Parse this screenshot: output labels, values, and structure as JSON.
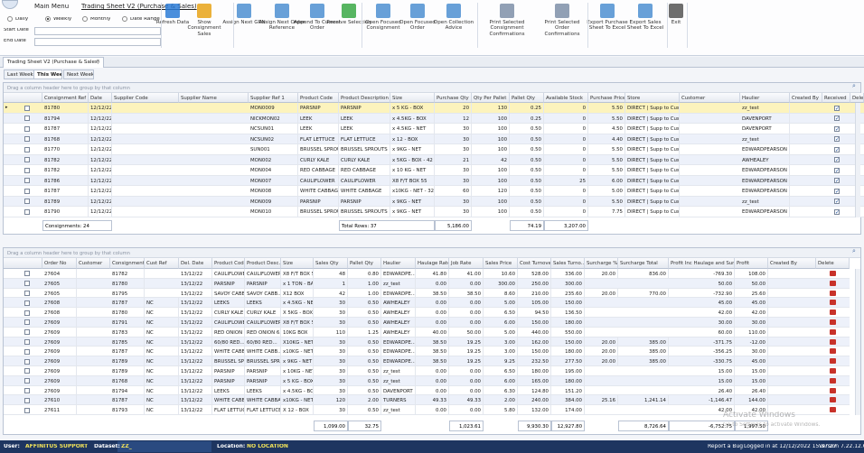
{
  "menu": {
    "tabs": [
      "Main Menu",
      "Trading Sheet V2  (Purchase & Sales)"
    ],
    "periods": [
      "Daily",
      "Weekly",
      "Monthly",
      "Date Range"
    ],
    "date_labels": [
      "Start Date",
      "End Date"
    ],
    "buttons": [
      "Refresh Data",
      "Show Consignment Sales",
      "Assign Next GRN",
      "Assign Next Order Reference",
      "Append To Current Order",
      "Receive Selection",
      "Open Focused Consignment",
      "Open Focused Order",
      "Open Collection Advice",
      "Print Selected Consignment Confirmations",
      "Print Selected Order Confirmations",
      "Export Purchase Sheet To Excel",
      "Export Sales Sheet To Excel",
      "Exit"
    ]
  },
  "document_tab": "Trading Sheet V2  (Purchase & Sales)",
  "week_tabs": [
    "Last Week",
    "This Week",
    "Next Week"
  ],
  "group_hint": "Drag a column header here to group by that column",
  "purchases": {
    "columns": [
      "Consignment Ref",
      "Date",
      "Supplier Code",
      "Supplier Name",
      "Supplier Ref 1",
      "Product Code",
      "Product Description",
      "Size",
      "Purchase Qty",
      "Qty Per Pallet",
      "Pallet Qty",
      "Available Stock",
      "Purchase Price",
      "Store",
      "Customer",
      "Haulier",
      "Created By",
      "Received",
      "Dele"
    ],
    "rows": [
      [
        "81780",
        "12/12/22",
        null,
        null,
        "MON0009",
        "PARSNIP",
        "PARSNIP",
        "x 5 KG - BOX",
        "20",
        "130",
        "0.25",
        "0",
        "5.50",
        "DIRECT | Supp to Cust |",
        null,
        "zz_test",
        null
      ],
      [
        "81794",
        "12/12/22",
        null,
        null,
        "NICKMON02",
        "LEEK",
        "LEEK",
        "x 4.5KG - BOX",
        "12",
        "100",
        "0.25",
        "0",
        "5.50",
        "DIRECT | Supp to Cust |",
        null,
        "DAVENPORT",
        null
      ],
      [
        "81787",
        "12/12/22",
        null,
        null,
        "NCSUN01",
        "LEEK",
        "LEEK",
        "x 4.5KG - NET",
        "30",
        "100",
        "0.50",
        "0",
        "4.50",
        "DIRECT | Supp to Cust |",
        null,
        "DAVENPORT",
        null
      ],
      [
        "81768",
        "12/12/22",
        null,
        null,
        "NCSUN02",
        "FLAT LETTUCE",
        "FLAT LETTUCE",
        "x 12 - BOX",
        "30",
        "100",
        "0.50",
        "0",
        "4.40",
        "DIRECT | Supp to Cust |",
        null,
        "zz_test",
        null
      ],
      [
        "81770",
        "12/12/22",
        null,
        null,
        "SUN001",
        "BRUSSEL SPROUTS",
        "BRUSSEL SPROUTS",
        "x 9KG - NET",
        "30",
        "100",
        "0.50",
        "0",
        "5.50",
        "DIRECT | Supp to Cust |",
        null,
        "EDWARDPEARSON",
        null
      ],
      [
        "81782",
        "12/12/22",
        null,
        null,
        "MON002",
        "CURLY KALE",
        "CURLY KALE",
        "x 5KG - BOX - 42",
        "21",
        "42",
        "0.50",
        "0",
        "5.50",
        "DIRECT | Supp to Cust |",
        null,
        "AWHEALEY",
        null
      ],
      [
        "81782",
        "12/12/22",
        null,
        null,
        "MON004",
        "RED CABBAGE",
        "RED CABBAGE",
        "x 10 KG - NET",
        "30",
        "100",
        "0.50",
        "0",
        "5.50",
        "DIRECT | Supp to Cust |",
        null,
        "EDWARDPEARSON",
        null
      ],
      [
        "81786",
        "12/12/22",
        null,
        null,
        "MON007",
        "CAULIFLOWER",
        "CAULIFLOWER",
        "X8 F/T BOX 55",
        "30",
        "100",
        "0.50",
        "25",
        "6.00",
        "DIRECT | Supp to Cust |",
        null,
        "EDWARDPEARSON",
        null
      ],
      [
        "81787",
        "12/12/22",
        null,
        null,
        "MON008",
        "WHITE CABBAGE",
        "WHITE CABBAGE",
        "x10KG - NET - 320",
        "60",
        "120",
        "0.50",
        "0",
        "5.00",
        "DIRECT | Supp to Cust |",
        null,
        "EDWARDPEARSON",
        null
      ],
      [
        "81789",
        "12/12/22",
        null,
        null,
        "MON009",
        "PARSNIP",
        "PARSNIP",
        "x 9KG - NET",
        "30",
        "100",
        "0.50",
        "0",
        "5.50",
        "DIRECT | Supp to Cust |",
        null,
        "zz_test",
        null
      ],
      [
        "81790",
        "12/12/22",
        null,
        null,
        "MON010",
        "BRUSSEL SPROUT",
        "BRUSSEL SPROUTS",
        "x 9KG - NET",
        "30",
        "100",
        "0.50",
        "0",
        "7.75",
        "DIRECT | Supp to Cust |",
        null,
        "EDWARDPEARSON",
        null
      ]
    ],
    "footer": [
      "Consignments: 24",
      null,
      null,
      null,
      null,
      null,
      "Total Rows: 37",
      null,
      "5,186.00",
      null,
      "74.19",
      "3,207.00",
      null,
      null,
      null,
      null,
      null,
      null,
      null
    ]
  },
  "sales": {
    "columns": [
      "Order No",
      "Customer",
      "Consignment",
      "Cust Ref",
      "Del. Date",
      "Product Code",
      "Product Desc...",
      "Size",
      "Sales Qty",
      "Pallet Qty",
      "Haulier",
      "Haulage Rate",
      "Job Rate",
      "Sales Price",
      "Cost Turnover",
      "Sales Turno...",
      "Surcharge %",
      "Surcharge Total",
      "Profit Inc Haulage and Surch...",
      "Profit",
      "Created By",
      "Delete"
    ],
    "rows": [
      [
        "27604",
        null,
        "81782",
        null,
        "13/12/22",
        "CAULIFLOWER",
        "CAULIFLOWER",
        "X8 F/T BOX 55",
        "48",
        "0.80",
        "EDWARDPE...",
        "41.80",
        "41.00",
        "10.60",
        "528.00",
        "336.00",
        "20.00",
        "836.00",
        "-769.30",
        "108.00",
        null
      ],
      [
        "27605",
        null,
        "81780",
        null,
        "13/12/22",
        "PARSNIP",
        "PARSNIP",
        "x 1 TON - BAG",
        "1",
        "1.00",
        "zz_test",
        "0.00",
        "0.00",
        "300.00",
        "250.00",
        "300.00",
        null,
        null,
        "50.00",
        "50.00",
        null
      ],
      [
        "27605",
        null,
        "81795",
        null,
        "13/12/22",
        "SAVOY CABB...",
        "SAVOY CABB...",
        "X12 BOX",
        "42",
        "1.00",
        "EDWARDPE...",
        "38.50",
        "38.50",
        "8.60",
        "210.00",
        "235.60",
        "20.00",
        "770.00",
        "-732.90",
        "25.60",
        null
      ],
      [
        "27608",
        null,
        "81787",
        "NC",
        "13/12/22",
        "LEEKS",
        "LEEKS",
        "x 4.5KG - NET",
        "30",
        "0.50",
        "AWHEALEY",
        "0.00",
        "0.00",
        "5.00",
        "105.00",
        "150.00",
        null,
        null,
        "45.00",
        "45.00",
        null
      ],
      [
        "27608",
        null,
        "81780",
        "NC",
        "13/12/22",
        "CURLY KALE",
        "CURLY KALE",
        "X 5KG - BOX",
        "30",
        "0.50",
        "AWHEALEY",
        "0.00",
        "0.00",
        "6.50",
        "94.50",
        "136.50",
        null,
        null,
        "42.00",
        "42.00",
        null
      ],
      [
        "27609",
        null,
        "81791",
        "NC",
        "13/12/22",
        "CAULIFLOWER",
        "CAULIFLOWER",
        "X8 F/T BOX 55",
        "30",
        "0.50",
        "AWHEALEY",
        "0.00",
        "0.00",
        "6.00",
        "150.00",
        "180.00",
        null,
        null,
        "30.00",
        "30.00",
        null
      ],
      [
        "27609",
        null,
        "81783",
        "NC",
        "13/12/22",
        "RED ONION 6...",
        "RED ONION 6...",
        "10KG BOX",
        "110",
        "1.25",
        "AWHEALEY",
        "40.00",
        "50.00",
        "5.00",
        "440.00",
        "550.00",
        null,
        null,
        "60.00",
        "110.00",
        null
      ],
      [
        "27609",
        null,
        "81785",
        "NC",
        "13/12/22",
        "60/80 RED...",
        "60/80 RED...",
        "X10KG - NET",
        "30",
        "0.50",
        "EDWARDPE...",
        "38.50",
        "19.25",
        "3.00",
        "162.00",
        "150.00",
        "20.00",
        "385.00",
        "-371.75",
        "-12.00",
        null
      ],
      [
        "27609",
        null,
        "81787",
        "NC",
        "13/12/22",
        "WHITE CABB...",
        "WHITE CABB...",
        "x10KG - NET",
        "30",
        "0.50",
        "EDWARDPE...",
        "38.50",
        "19.25",
        "3.00",
        "150.00",
        "180.00",
        "20.00",
        "385.00",
        "-356.25",
        "30.00",
        null
      ],
      [
        "27609",
        null,
        "81789",
        "NC",
        "13/12/22",
        "BRUSSEL SPR...",
        "BRUSSEL SPR...",
        "x 9KG - NET",
        "30",
        "0.50",
        "EDWARDPE...",
        "38.50",
        "19.25",
        "9.25",
        "232.50",
        "277.50",
        "20.00",
        "385.00",
        "-330.75",
        "45.00",
        null
      ],
      [
        "27609",
        null,
        "81789",
        "NC",
        "13/12/22",
        "PARSNIP",
        "PARSNIP",
        "x 10KG - NET",
        "30",
        "0.50",
        "zz_test",
        "0.00",
        "0.00",
        "6.50",
        "180.00",
        "195.00",
        null,
        null,
        "15.00",
        "15.00",
        null
      ],
      [
        "27609",
        null,
        "81768",
        "NC",
        "13/12/22",
        "PARSNIP",
        "PARSNIP",
        "x 5 KG - BOX",
        "30",
        "0.50",
        "zz_test",
        "0.00",
        "0.00",
        "6.00",
        "165.00",
        "180.00",
        null,
        null,
        "15.00",
        "15.00",
        null
      ],
      [
        "27609",
        null,
        "81794",
        "NC",
        "13/12/22",
        "LEEKS",
        "LEEKS",
        "x 4.5KG - BOX",
        "30",
        "0.50",
        "DAVENPORT",
        "0.00",
        "0.00",
        "6.30",
        "124.80",
        "151.20",
        null,
        null,
        "26.40",
        "26.40",
        null
      ],
      [
        "27610",
        null,
        "81787",
        "NC",
        "13/12/22",
        "WHITE CABB...",
        "WHITE CABBA...",
        "x10KG - NET",
        "120",
        "2.00",
        "TURNERS",
        "49.33",
        "49.33",
        "2.00",
        "240.00",
        "384.00",
        "25.16",
        "1,241.14",
        "-1,146.47",
        "144.00",
        null
      ],
      [
        "27611",
        null,
        "81793",
        "NC",
        "13/12/22",
        "FLAT LETTUCE",
        "FLAT LETTUCE",
        "X 12 - BOX",
        "30",
        "0.50",
        "zz_test",
        "0.00",
        "0.00",
        "5.80",
        "132.00",
        "174.00",
        null,
        null,
        "42.00",
        "42.00",
        null
      ]
    ],
    "footer": [
      null,
      null,
      null,
      null,
      null,
      null,
      null,
      null,
      "1,099.00",
      "32.75",
      null,
      null,
      "1,023.61",
      null,
      "9,930.30",
      "12,927.80",
      null,
      "8,726.64",
      "-6,752.75",
      "1,997.50",
      null,
      null
    ]
  },
  "status": {
    "user_label": "User:",
    "user": "AFFINITUS SUPPORT",
    "dataset_label": "Dataset:",
    "dataset": "ZZ_",
    "location_label": "Location:",
    "location": "NO LOCATION",
    "report": "Report a Bug",
    "logged_in": "Logged in at 12/12/2022 15:37:27",
    "version": "Version 7.22.12.6"
  },
  "watermark": [
    "Activate Windows",
    "Go to Settings to activate Windows."
  ]
}
